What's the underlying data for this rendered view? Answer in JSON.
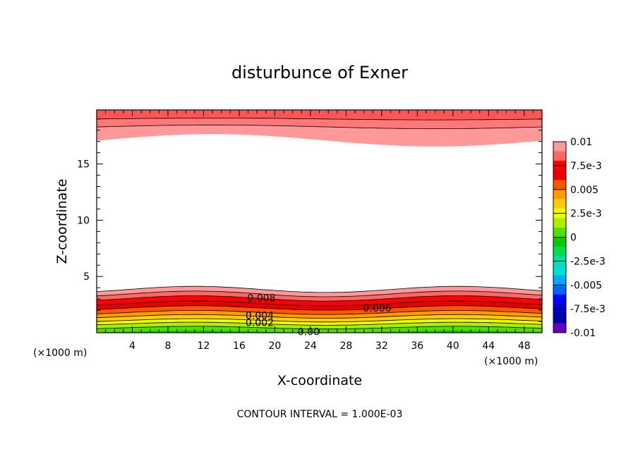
{
  "chart_data": {
    "type": "heatmap",
    "title": "disturbunce of Exner",
    "xlabel": "X-coordinate",
    "ylabel": "Z-coordinate",
    "x_unit_left": "(×1000 m)",
    "x_unit_right": "(×1000 m)",
    "footer": "CONTOUR INTERVAL = 1.000E-03",
    "xlim": [
      0,
      50
    ],
    "ylim": [
      0,
      19.8
    ],
    "x_ticks": [
      4,
      8,
      12,
      16,
      20,
      24,
      28,
      32,
      36,
      40,
      44,
      48
    ],
    "y_ticks": [
      5,
      10,
      15
    ],
    "colorbar": {
      "range": [
        -0.01,
        0.01
      ],
      "tick_labels": [
        "0.01",
        "7.5e-3",
        "0.005",
        "2.5e-3",
        "0",
        "-2.5e-3",
        "-0.005",
        "-7.5e-3",
        "-0.01"
      ],
      "colors": [
        "#ff9999",
        "#ff6666",
        "#ff0000",
        "#e60000",
        "#ff5500",
        "#ff9900",
        "#ffcc00",
        "#eeff00",
        "#aaee00",
        "#55dd00",
        "#00cc00",
        "#00dd55",
        "#00e0aa",
        "#00dddd",
        "#00aaff",
        "#0066ff",
        "#0000ff",
        "#0000cc",
        "#0000aa",
        "#6600bb"
      ]
    },
    "contour_labels": [
      {
        "text": "0.008",
        "x": 18.5,
        "z": 3.1
      },
      {
        "text": "0.006",
        "x": 31.5,
        "z": 2.2
      },
      {
        "text": "0.004",
        "x": 18.3,
        "z": 1.55
      },
      {
        "text": "0.002",
        "x": 18.3,
        "z": 0.9
      },
      {
        "text": "0.00",
        "x": 23.8,
        "z": 0.08
      }
    ],
    "fields": {
      "top_band": "values about 0.008 to 0.01 above z ≈ 16.5–17.5",
      "bottom_band": "values decreasing from about 0.01 at z ≈ 4 to 0.00 at z = 0"
    }
  }
}
